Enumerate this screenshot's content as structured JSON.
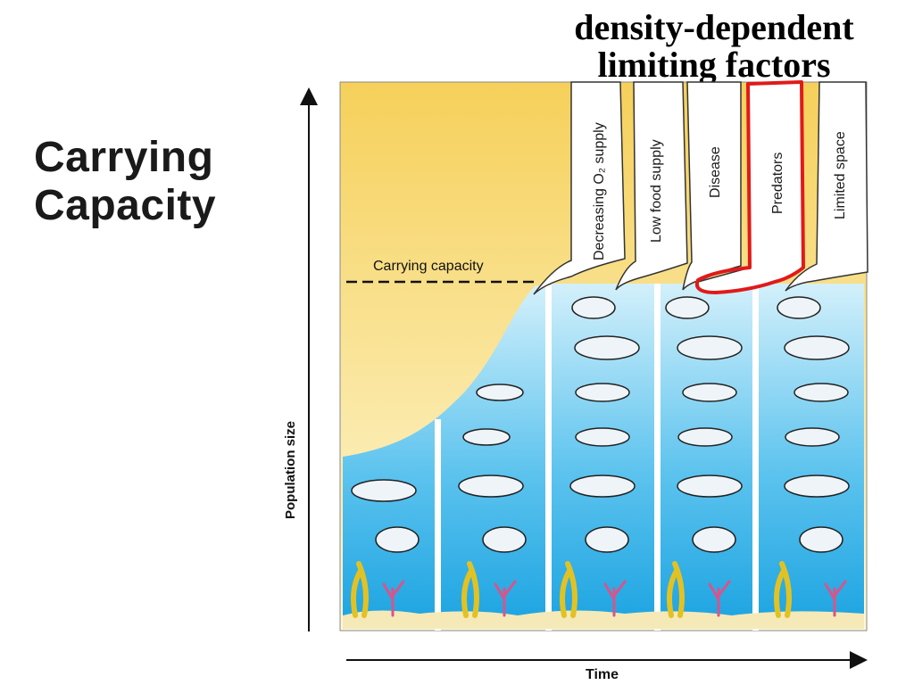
{
  "slide": {
    "title_line1": "Carrying",
    "title_line2": "Capacity"
  },
  "header": {
    "line1": "density-dependent",
    "line2": "limiting factors"
  },
  "diagram": {
    "carrying_capacity_label": "Carrying capacity",
    "y_axis_label": "Population size",
    "x_axis_label": "Time",
    "limiting_factors": [
      "Decreasing O₂ supply",
      "Low food supply",
      "Disease",
      "Predators",
      "Limited space"
    ],
    "highlighted_factor": "Predators",
    "colors": {
      "sky_top": "#f6d05a",
      "sky_bottom": "#fdf8d8",
      "water_top": "#d3f0fb",
      "water_bottom": "#1ba3e1",
      "sand": "#f5e9b8",
      "highlight": "#e01a1a"
    }
  }
}
